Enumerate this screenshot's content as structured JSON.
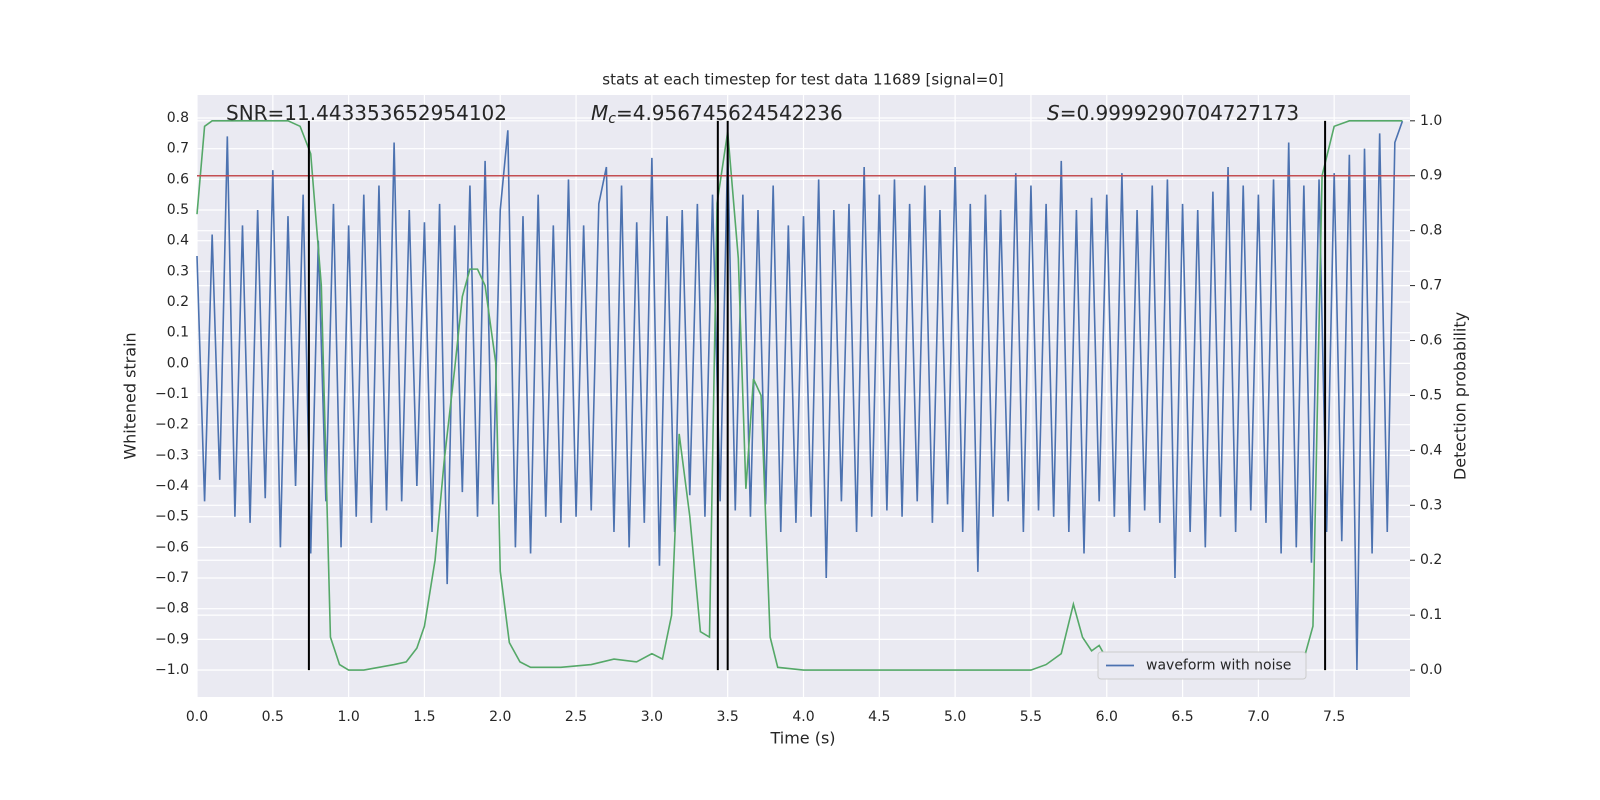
{
  "chart_data": {
    "type": "line",
    "title": "stats at each timestep for test data 11689 [signal=0]",
    "x_label": "Time (s)",
    "y_label": "Whitened strain",
    "y2_label": "Detection probability",
    "xlim": [
      0,
      8.0
    ],
    "ylim": [
      -1.088,
      0.875
    ],
    "y2lim": [
      -0.049,
      1.047
    ],
    "xticks": [
      {
        "value": 0,
        "label": "0.0"
      },
      0.5,
      {
        "value": 1,
        "label": "1.0"
      },
      1.5,
      {
        "value": 2,
        "label": "2.0"
      },
      2.5,
      {
        "value": 3,
        "label": "3.0"
      },
      3.5,
      {
        "value": 4,
        "label": "4.0"
      },
      4.5,
      {
        "value": 5,
        "label": "5.0"
      },
      5.5,
      {
        "value": 6,
        "label": "6.0"
      },
      6.5,
      {
        "value": 7,
        "label": "7.0"
      },
      7.5
    ],
    "yticks": [
      {
        "value": -1.0,
        "label": "−1.0"
      },
      {
        "value": -0.9,
        "label": "−0.9"
      },
      {
        "value": -0.8,
        "label": "−0.8"
      },
      {
        "value": -0.7,
        "label": "−0.7"
      },
      {
        "value": -0.6,
        "label": "−0.6"
      },
      {
        "value": -0.5,
        "label": "−0.5"
      },
      {
        "value": -0.4,
        "label": "−0.4"
      },
      {
        "value": -0.3,
        "label": "−0.3"
      },
      {
        "value": -0.2,
        "label": "−0.2"
      },
      {
        "value": -0.1,
        "label": "−0.1"
      },
      {
        "value": 0,
        "label": "0.0"
      },
      0.1,
      0.2,
      0.3,
      0.4,
      0.5,
      0.6,
      0.7,
      0.8
    ],
    "y2ticks": [
      {
        "value": 0,
        "label": "0.0"
      },
      0.1,
      0.2,
      0.3,
      0.4,
      0.5,
      0.6,
      0.7,
      0.8,
      0.9,
      {
        "value": 1,
        "label": "1.0"
      }
    ],
    "grid": true,
    "legend": "lower right",
    "series": [
      {
        "name": "waveform with noise",
        "color": "#4c72b0",
        "x": [
          0,
          0.05,
          0.1,
          0.15,
          0.2,
          0.25,
          0.3,
          0.35,
          0.4,
          0.45,
          0.5,
          0.55,
          0.6,
          0.65,
          0.7,
          0.75,
          0.8,
          0.85,
          0.9,
          0.95,
          1.0,
          1.05,
          1.1,
          1.15,
          1.2,
          1.25,
          1.3,
          1.35,
          1.4,
          1.45,
          1.5,
          1.55,
          1.6,
          1.65,
          1.7,
          1.75,
          1.8,
          1.85,
          1.9,
          1.95,
          2.0,
          2.05,
          2.1,
          2.15,
          2.2,
          2.25,
          2.3,
          2.35,
          2.4,
          2.45,
          2.5,
          2.55,
          2.6,
          2.65,
          2.7,
          2.75,
          2.8,
          2.85,
          2.9,
          2.95,
          3.0,
          3.05,
          3.1,
          3.15,
          3.2,
          3.25,
          3.3,
          3.35,
          3.4,
          3.45,
          3.5,
          3.55,
          3.6,
          3.65,
          3.7,
          3.75,
          3.8,
          3.85,
          3.9,
          3.95,
          4.0,
          4.05,
          4.1,
          4.15,
          4.2,
          4.25,
          4.3,
          4.35,
          4.4,
          4.45,
          4.5,
          4.55,
          4.6,
          4.65,
          4.7,
          4.75,
          4.8,
          4.85,
          4.9,
          4.95,
          5.0,
          5.05,
          5.1,
          5.15,
          5.2,
          5.25,
          5.3,
          5.35,
          5.4,
          5.45,
          5.5,
          5.55,
          5.6,
          5.65,
          5.7,
          5.75,
          5.8,
          5.85,
          5.9,
          5.95,
          6.0,
          6.05,
          6.1,
          6.15,
          6.2,
          6.25,
          6.3,
          6.35,
          6.4,
          6.45,
          6.5,
          6.55,
          6.6,
          6.65,
          6.7,
          6.75,
          6.8,
          6.85,
          6.9,
          6.95,
          7.0,
          7.05,
          7.1,
          7.15,
          7.2,
          7.25,
          7.3,
          7.35,
          7.4,
          7.45,
          7.5,
          7.55,
          7.6,
          7.65,
          7.7,
          7.75,
          7.8,
          7.85,
          7.9,
          7.95
        ],
        "values": [
          0.35,
          -0.45,
          0.42,
          -0.38,
          0.74,
          -0.5,
          0.45,
          -0.52,
          0.5,
          -0.44,
          0.63,
          -0.6,
          0.48,
          -0.4,
          0.55,
          -0.62,
          0.4,
          -0.45,
          0.52,
          -0.6,
          0.45,
          -0.5,
          0.55,
          -0.52,
          0.58,
          -0.48,
          0.72,
          -0.45,
          0.5,
          -0.4,
          0.46,
          -0.55,
          0.52,
          -0.72,
          0.45,
          -0.42,
          0.58,
          -0.5,
          0.66,
          -0.46,
          0.5,
          0.76,
          -0.6,
          0.48,
          -0.62,
          0.55,
          -0.5,
          0.45,
          -0.52,
          0.6,
          -0.5,
          0.45,
          -0.48,
          0.52,
          0.64,
          -0.55,
          0.58,
          -0.6,
          0.46,
          -0.52,
          0.67,
          -0.66,
          0.48,
          -0.55,
          0.5,
          -0.43,
          0.52,
          -0.5,
          0.55,
          -0.45,
          0.7,
          -0.48,
          0.55,
          -0.5,
          0.5,
          -0.46,
          0.58,
          -0.55,
          0.45,
          -0.52,
          0.48,
          -0.5,
          0.6,
          -0.7,
          0.5,
          -0.45,
          0.52,
          -0.55,
          0.64,
          -0.5,
          0.55,
          -0.48,
          0.6,
          -0.5,
          0.52,
          -0.45,
          0.58,
          -0.52,
          0.5,
          -0.46,
          0.64,
          -0.55,
          0.52,
          -0.68,
          0.55,
          -0.5,
          0.5,
          -0.45,
          0.62,
          -0.55,
          0.58,
          -0.48,
          0.52,
          -0.5,
          0.66,
          -0.55,
          0.5,
          -0.62,
          0.54,
          -0.45,
          0.55,
          -0.5,
          0.62,
          -0.55,
          0.5,
          -0.48,
          0.58,
          -0.52,
          0.6,
          -0.7,
          0.52,
          -0.55,
          0.5,
          -0.6,
          0.56,
          -0.5,
          0.64,
          -0.55,
          0.58,
          -0.48,
          0.55,
          -0.52,
          0.6,
          -0.62,
          0.72,
          -0.6,
          0.58,
          -0.65,
          0.6,
          -0.55,
          0.62,
          -0.58,
          0.68,
          -1.0,
          0.7,
          -0.62,
          0.75,
          -0.55,
          0.72,
          0.79
        ]
      },
      {
        "color": "#55a868",
        "axis": "y2",
        "x": [
          0,
          0.05,
          0.1,
          0.6,
          0.68,
          0.75,
          0.82,
          0.88,
          0.94,
          1.0,
          1.1,
          1.2,
          1.3,
          1.38,
          1.45,
          1.5,
          1.57,
          1.63,
          1.7,
          1.75,
          1.8,
          1.85,
          1.9,
          1.97,
          2.0,
          2.06,
          2.13,
          2.2,
          2.4,
          2.6,
          2.75,
          2.9,
          3.0,
          3.07,
          3.13,
          3.18,
          3.25,
          3.32,
          3.38,
          3.43,
          3.5,
          3.57,
          3.62,
          3.67,
          3.72,
          3.78,
          3.83,
          4.0,
          4.5,
          5.0,
          5.5,
          5.6,
          5.7,
          5.78,
          5.84,
          5.9,
          5.95,
          6.0,
          6.1,
          6.3,
          6.5,
          6.8,
          7.0,
          7.12,
          7.2,
          7.25,
          7.3,
          7.36,
          7.42,
          7.5,
          7.6,
          7.95
        ],
        "values": [
          0.83,
          0.99,
          1.0,
          1.0,
          0.99,
          0.94,
          0.7,
          0.06,
          0.01,
          0.0,
          0.0,
          0.005,
          0.01,
          0.015,
          0.04,
          0.08,
          0.2,
          0.38,
          0.55,
          0.68,
          0.73,
          0.73,
          0.7,
          0.56,
          0.18,
          0.05,
          0.015,
          0.005,
          0.005,
          0.01,
          0.02,
          0.015,
          0.03,
          0.02,
          0.1,
          0.43,
          0.28,
          0.07,
          0.06,
          0.85,
          0.98,
          0.75,
          0.33,
          0.53,
          0.5,
          0.06,
          0.005,
          0.0,
          0.0,
          0.0,
          0.0,
          0.01,
          0.03,
          0.12,
          0.06,
          0.035,
          0.045,
          0.02,
          0.005,
          0.002,
          0.005,
          0.002,
          0.002,
          0.005,
          0.02,
          0.03,
          0.02,
          0.08,
          0.9,
          0.99,
          1.0,
          1.0
        ]
      }
    ],
    "hline": {
      "value": 0.9,
      "axis": "y2",
      "color": "#c44e52"
    },
    "vlines": {
      "x": [
        0.738,
        3.435,
        3.5,
        7.44
      ],
      "ymin": 0,
      "ymax": 1,
      "axis": "y2",
      "color": "#000000"
    },
    "annotations": [
      {
        "text": "SNR=11.443353652954102"
      },
      {
        "symbol": "M",
        "sub": "c",
        "text": "=4.956745624542236"
      },
      {
        "symbol": "S",
        "text": "=0.9999290704727173"
      }
    ]
  }
}
